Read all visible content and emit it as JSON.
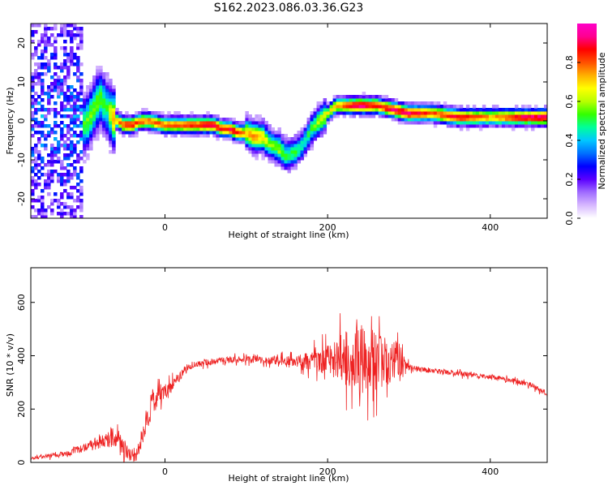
{
  "figure": {
    "title": "S162.2023.086.03.36.G23"
  },
  "colors": {
    "background": "#ffffff",
    "axis": "#000000",
    "snr_line": "#ee2222",
    "spectrogram_low": "#6a00ff",
    "spectrogram_high": "#ff0000"
  },
  "chart_data": [
    {
      "type": "heatmap",
      "title": "",
      "xlabel": "Height of straight line (km)",
      "ylabel": "Frequency (Hz)",
      "xlim": [
        -165,
        470
      ],
      "ylim": [
        -25,
        25
      ],
      "xticks": [
        0,
        200,
        400
      ],
      "yticks": [
        -20,
        -10,
        0,
        10,
        20
      ],
      "colorbar": {
        "label": "Normalized spectral amplitude",
        "range": [
          0,
          1
        ],
        "ticks": [
          "0.0",
          "0.2",
          "0.4",
          "0.6",
          "0.8"
        ],
        "colors": [
          "#ffffff",
          "#d7b8ff",
          "#a06cff",
          "#5a00ff",
          "#0000ff",
          "#0070ff",
          "#00c8ff",
          "#00ff9a",
          "#33ff00",
          "#b8ff00",
          "#ffff00",
          "#ffb000",
          "#ff5000",
          "#ff0000",
          "#ff0090",
          "#ff00c8"
        ]
      },
      "ridge": {
        "x": [
          -165,
          -150,
          -130,
          -110,
          -95,
          -80,
          -70,
          -65,
          -58,
          -50,
          -40,
          -30,
          -20,
          0,
          20,
          40,
          60,
          70,
          80,
          90,
          100,
          110,
          120,
          130,
          140,
          150,
          160,
          170,
          180,
          190,
          200,
          210,
          220,
          240,
          260,
          280,
          300,
          330,
          360,
          400,
          440,
          470
        ],
        "y": [
          -2,
          3,
          1,
          -3,
          0,
          6,
          3,
          1,
          0,
          -1,
          -1,
          0,
          0,
          -1,
          -1,
          -1,
          -1,
          -2,
          -2,
          -3,
          -3,
          -4,
          -4,
          -6,
          -7,
          -9,
          -8,
          -6,
          -2,
          0,
          2,
          4,
          4,
          4,
          4,
          3,
          2,
          2,
          1,
          1,
          1,
          1
        ],
        "amplitude": [
          0.35,
          0.4,
          0.4,
          0.45,
          0.55,
          0.55,
          0.5,
          0.7,
          0.75,
          0.85,
          0.85,
          0.8,
          0.8,
          0.8,
          0.8,
          0.85,
          0.9,
          0.85,
          0.9,
          0.85,
          0.7,
          0.75,
          0.7,
          0.55,
          0.6,
          0.5,
          0.5,
          0.45,
          0.5,
          0.6,
          0.65,
          0.75,
          0.8,
          0.95,
          0.85,
          0.9,
          0.95,
          0.8,
          0.9,
          0.75,
          0.9,
          0.95
        ]
      }
    },
    {
      "type": "line",
      "title": "",
      "xlabel": "Height of straight line (km)",
      "ylabel": "SNR (10 * v/v)",
      "xlim": [
        -165,
        470
      ],
      "ylim": [
        0,
        730
      ],
      "xticks": [
        0,
        200,
        400
      ],
      "yticks": [
        0,
        200,
        400,
        600
      ],
      "series": [
        {
          "x": [
            -165,
            -140,
            -120,
            -100,
            -80,
            -60,
            -45,
            -35,
            -25,
            -15,
            0,
            10,
            20,
            30,
            50,
            80,
            120,
            160,
            200,
            230,
            250,
            270,
            290,
            300,
            320,
            360,
            400,
            430,
            450,
            470
          ],
          "y": [
            15,
            25,
            35,
            55,
            75,
            90,
            40,
            30,
            130,
            230,
            270,
            300,
            330,
            360,
            375,
            385,
            385,
            380,
            385,
            390,
            390,
            380,
            375,
            355,
            345,
            335,
            320,
            305,
            290,
            255
          ],
          "noise": [
            6,
            10,
            14,
            20,
            30,
            40,
            40,
            40,
            60,
            60,
            40,
            30,
            20,
            15,
            15,
            15,
            18,
            25,
            70,
            150,
            170,
            120,
            90,
            15,
            12,
            12,
            12,
            12,
            12,
            12
          ]
        }
      ]
    }
  ]
}
